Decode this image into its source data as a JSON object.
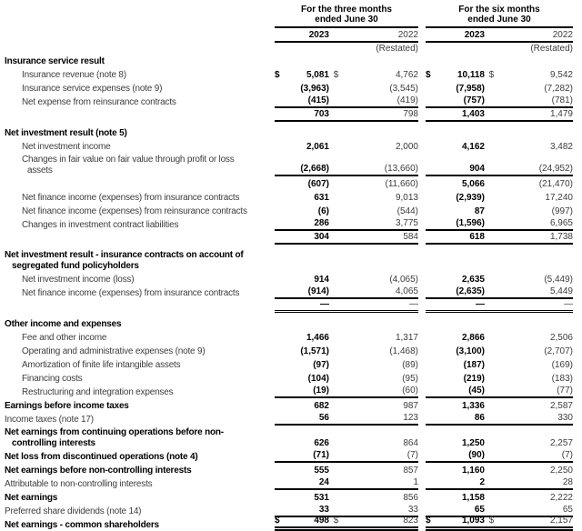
{
  "currency_symbol": "$",
  "header": {
    "col_groups": [
      {
        "title_line1": "For the three months",
        "title_line2": "ended June 30",
        "years": [
          "2023",
          "2022"
        ],
        "restated": "(Restated)"
      },
      {
        "title_line1": "For the six months",
        "title_line2": "ended June 30",
        "years": [
          "2023",
          "2022"
        ],
        "restated": "(Restated)"
      }
    ]
  },
  "rows": [
    {
      "t": "sec",
      "label": "Insurance service result"
    },
    {
      "t": "item",
      "label": "Insurance revenue (note 8)",
      "dollar": true,
      "v": [
        "5,081",
        "4,762",
        "10,118",
        "9,542"
      ]
    },
    {
      "t": "item",
      "label": "Insurance service expenses (note 9)",
      "v": [
        "(3,963)",
        "(3,545)",
        "(7,958)",
        "(7,282)"
      ]
    },
    {
      "t": "item",
      "label": "Net expense from reinsurance contracts",
      "v": [
        "(415)",
        "(419)",
        "(757)",
        "(781)"
      ],
      "rb": 1
    },
    {
      "t": "tot",
      "v": [
        "703",
        "798",
        "1,403",
        "1,479"
      ],
      "rb": 1
    },
    {
      "t": "spacer"
    },
    {
      "t": "sec",
      "label": "Net investment result (note 5)"
    },
    {
      "t": "item",
      "label": "Net investment income",
      "v": [
        "2,061",
        "2,000",
        "4,162",
        "3,482"
      ]
    },
    {
      "t": "item",
      "h2": 1,
      "label": "Changes in fair value on fair value through profit or loss",
      "label2": "assets",
      "v": [
        "(2,668)",
        "(13,660)",
        "904",
        "(24,952)"
      ],
      "rb": 1
    },
    {
      "t": "tot",
      "v": [
        "(607)",
        "(11,660)",
        "5,066",
        "(21,470)"
      ]
    },
    {
      "t": "item",
      "label": "Net finance income (expenses) from insurance contracts",
      "v": [
        "631",
        "9,013",
        "(2,939)",
        "17,240"
      ]
    },
    {
      "t": "item",
      "label": "Net finance income (expenses) from reinsurance contracts",
      "v": [
        "(6)",
        "(544)",
        "87",
        "(997)"
      ]
    },
    {
      "t": "item",
      "label": "Changes in investment contract liabilities",
      "v": [
        "286",
        "3,775",
        "(1,596)",
        "6,965"
      ],
      "rb": 1
    },
    {
      "t": "tot",
      "v": [
        "304",
        "584",
        "618",
        "1,738"
      ],
      "rb": 1
    },
    {
      "t": "spacer"
    },
    {
      "t": "sec",
      "h2": 1,
      "label": "Net investment result - insurance contracts on account of",
      "label2": "segregated fund policyholders"
    },
    {
      "t": "item",
      "label": "Net investment income (loss)",
      "v": [
        "914",
        "(4,065)",
        "2,635",
        "(5,449)"
      ]
    },
    {
      "t": "item",
      "label": "Net finance income (expenses) from insurance contracts",
      "v": [
        "(914)",
        "4,065",
        "(2,635)",
        "5,449"
      ],
      "rb": 1
    },
    {
      "t": "tot",
      "v": [
        "—",
        "—",
        "—",
        "—"
      ],
      "db": 1
    },
    {
      "t": "spacer"
    },
    {
      "t": "sec",
      "label": "Other income and expenses"
    },
    {
      "t": "item",
      "label": "Fee and other income",
      "v": [
        "1,466",
        "1,317",
        "2,866",
        "2,506"
      ]
    },
    {
      "t": "item",
      "label": "Operating and administrative expenses (note 9)",
      "v": [
        "(1,571)",
        "(1,468)",
        "(3,100)",
        "(2,707)"
      ]
    },
    {
      "t": "item",
      "label": "Amortization of finite life intangible assets",
      "v": [
        "(97)",
        "(89)",
        "(187)",
        "(169)"
      ]
    },
    {
      "t": "item",
      "label": "Financing costs",
      "v": [
        "(104)",
        "(95)",
        "(219)",
        "(183)"
      ]
    },
    {
      "t": "item",
      "label": "Restructuring and integration expenses",
      "v": [
        "(19)",
        "(60)",
        "(45)",
        "(77)"
      ],
      "rb": 1
    },
    {
      "t": "secv",
      "label": "Earnings before income taxes",
      "v": [
        "682",
        "987",
        "1,336",
        "2,587"
      ]
    },
    {
      "t": "plain",
      "label": "Income taxes (note 17)",
      "v": [
        "56",
        "123",
        "86",
        "330"
      ],
      "rb": 1
    },
    {
      "t": "secv",
      "h2": 1,
      "label": "Net earnings from continuing operations before non-",
      "label2": "controlling interests",
      "v": [
        "626",
        "864",
        "1,250",
        "2,257"
      ]
    },
    {
      "t": "secv",
      "label": "Net loss from discontinued operations (note 4)",
      "v": [
        "(71)",
        "(7)",
        "(90)",
        "(7)"
      ],
      "rb": 1
    },
    {
      "t": "secv",
      "label": "Net earnings before non-controlling interests",
      "v": [
        "555",
        "857",
        "1,160",
        "2,250"
      ]
    },
    {
      "t": "plain",
      "label": "Attributable to non-controlling interests",
      "v": [
        "24",
        "1",
        "2",
        "28"
      ],
      "rb": 1
    },
    {
      "t": "secv",
      "label": "Net earnings",
      "v": [
        "531",
        "856",
        "1,158",
        "2,222"
      ]
    },
    {
      "t": "plain",
      "label": "Preferred share dividends (note 14)",
      "v": [
        "33",
        "33",
        "65",
        "65"
      ],
      "rb": 1
    },
    {
      "t": "secv",
      "label": "Net earnings - common shareholders",
      "dollar": true,
      "v": [
        "498",
        "823",
        "1,093",
        "2,157"
      ],
      "db2": 1
    }
  ]
}
